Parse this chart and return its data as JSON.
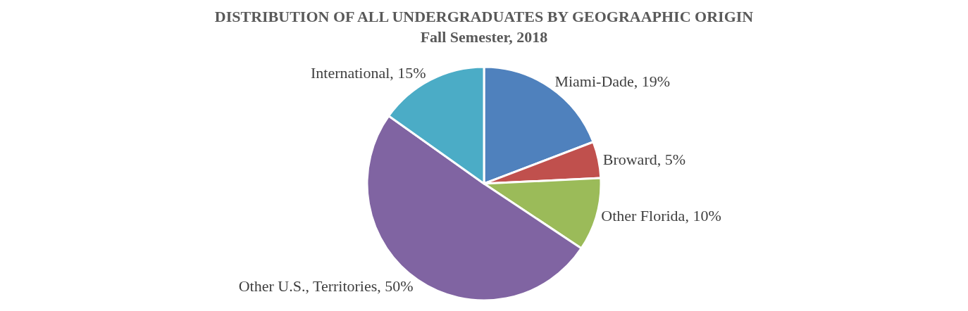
{
  "chart_data": {
    "type": "pie",
    "title": "DISTRIBUTION OF ALL UNDERGRADUATES BY GEOGRAAPHIC ORIGIN",
    "subtitle": "Fall Semester, 2018",
    "categories": [
      "Miami-Dade",
      "Broward",
      "Other Florida",
      "Other U.S., Territories",
      "International"
    ],
    "values": [
      19,
      5,
      10,
      50,
      15
    ],
    "value_labels": [
      "19%",
      "5%",
      "10%",
      "50%",
      "15%"
    ],
    "colors": [
      "#4f81bd",
      "#c0504d",
      "#9bbb59",
      "#8064a2",
      "#4bacc6"
    ],
    "legend": false
  }
}
